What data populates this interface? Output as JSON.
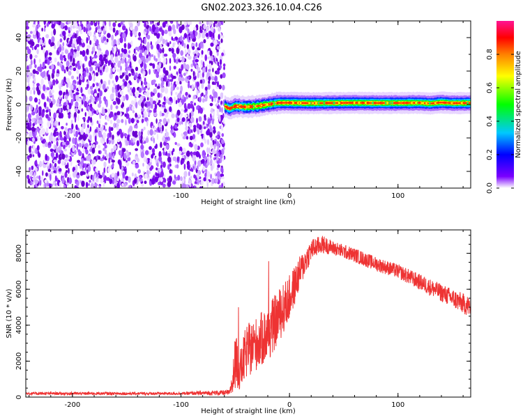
{
  "figure": {
    "title": "GN02.2023.326.10.04.C26"
  },
  "chart_data": [
    {
      "type": "heatmap",
      "title": "",
      "xlabel": "Height of straight line (km)",
      "ylabel": "Frequency (Hz)",
      "xlim": [
        -243,
        167
      ],
      "ylim": [
        -50,
        50
      ],
      "x_ticks": [
        -200,
        -100,
        0,
        100
      ],
      "y_ticks": [
        -40,
        -20,
        0,
        20,
        40
      ],
      "noise_region_x": [
        -243,
        -60
      ],
      "signal_ridge": {
        "x": [
          -60,
          -55,
          -50,
          -40,
          -30,
          -20,
          -10,
          0,
          20,
          40,
          60,
          80,
          100,
          120,
          130,
          140,
          150,
          167
        ],
        "freq": [
          -1,
          -2.5,
          -1,
          -1.5,
          -1,
          0,
          1,
          1,
          0.8,
          0.9,
          1,
          0.9,
          0.9,
          1,
          0.6,
          1.2,
          0.8,
          0.9
        ]
      },
      "colorbar": {
        "label": "Normalized spectral amplitude",
        "range": [
          0,
          1
        ],
        "ticks": [
          0.0,
          0.2,
          0.4,
          0.6,
          0.8
        ],
        "colormap": [
          "#ffffff",
          "#7a00ff",
          "#0000ff",
          "#00c8ff",
          "#00ff00",
          "#ffff00",
          "#ff8000",
          "#ff0000",
          "#ff1493"
        ]
      }
    },
    {
      "type": "line",
      "title": "",
      "xlabel": "Height of straight line (km)",
      "ylabel": "SNR (10 * v/v)",
      "xlim": [
        -243,
        167
      ],
      "ylim": [
        0,
        9300
      ],
      "x_ticks": [
        -200,
        -100,
        0,
        100
      ],
      "y_ticks": [
        0,
        2000,
        4000,
        6000,
        8000
      ],
      "color": "#ee3333",
      "envelope": {
        "x": [
          -243,
          -100,
          -55,
          -52,
          -50,
          -45,
          -40,
          -30,
          -20,
          -10,
          0,
          10,
          20,
          30,
          40,
          60,
          80,
          100,
          120,
          140,
          167
        ],
        "mean": [
          200,
          200,
          250,
          1000,
          2000,
          1500,
          2500,
          3000,
          3500,
          4500,
          5500,
          7000,
          8200,
          8500,
          8300,
          7900,
          7400,
          7000,
          6400,
          5800,
          5000
        ],
        "spread": [
          80,
          80,
          150,
          1000,
          1500,
          1200,
          1500,
          1500,
          1600,
          1500,
          1300,
          900,
          600,
          500,
          400,
          400,
          400,
          400,
          450,
          500,
          600
        ]
      }
    }
  ]
}
